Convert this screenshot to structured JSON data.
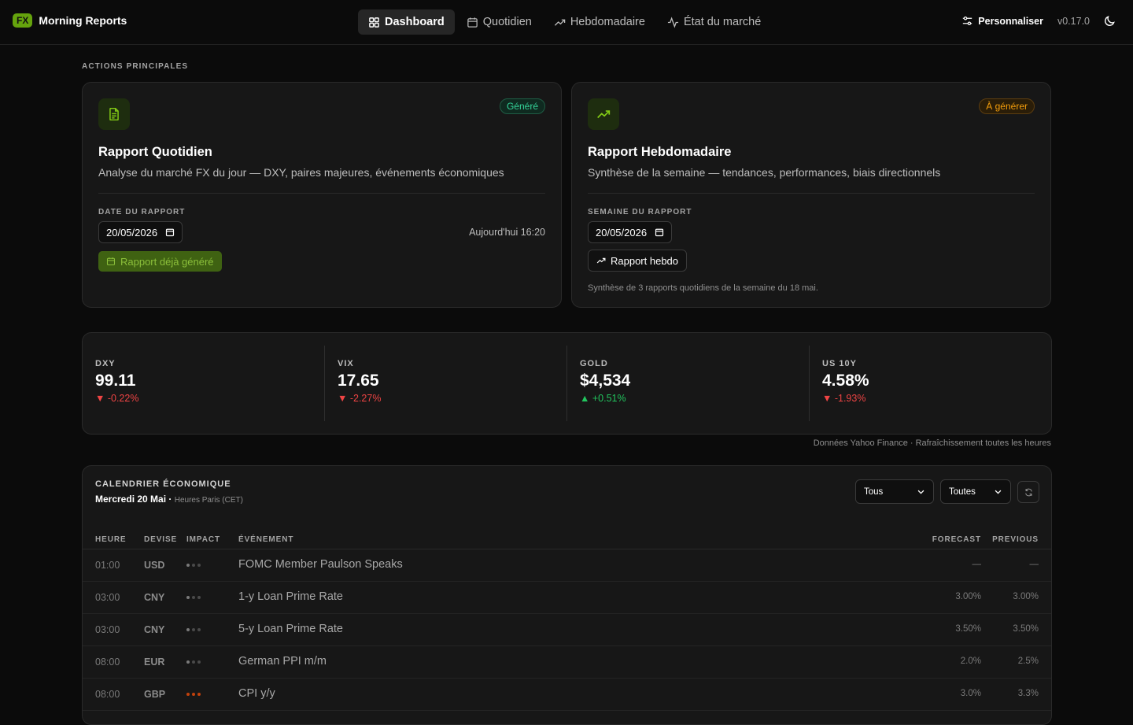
{
  "app": {
    "logo_badge": "FX",
    "name": "Morning Reports",
    "version": "v0.17.0"
  },
  "nav": {
    "items": [
      {
        "label": "Dashboard",
        "icon": "grid-icon"
      },
      {
        "label": "Quotidien",
        "icon": "calendar-icon"
      },
      {
        "label": "Hebdomadaire",
        "icon": "trending-up-icon"
      },
      {
        "label": "État du marché",
        "icon": "activity-icon"
      }
    ],
    "customize_label": "Personnaliser"
  },
  "main_actions_label": "ACTIONS PRINCIPALES",
  "daily": {
    "title": "Rapport Quotidien",
    "description": "Analyse du marché FX du jour — DXY, paires majeures, événements économiques",
    "status": "Généré",
    "date_label": "DATE DU RAPPORT",
    "date_value": "20/05/2026",
    "generated_at": "Aujourd'hui 16:20",
    "button_label": "Rapport déjà généré"
  },
  "weekly": {
    "title": "Rapport Hebdomadaire",
    "description": "Synthèse de la semaine — tendances, performances, biais directionnels",
    "status": "À générer",
    "week_label": "SEMAINE DU RAPPORT",
    "date_value": "20/05/2026",
    "button_label": "Rapport hebdo",
    "note": "Synthèse de 3 rapports quotidiens de la semaine du 18 mai."
  },
  "tickers": [
    {
      "name": "DXY",
      "value": "99.11",
      "change": "▼ -0.22%",
      "direction": "down"
    },
    {
      "name": "VIX",
      "value": "17.65",
      "change": "▼ -2.27%",
      "direction": "down"
    },
    {
      "name": "GOLD",
      "value": "$4,534",
      "change": "▲ +0.51%",
      "direction": "up"
    },
    {
      "name": "US 10Y",
      "value": "4.58%",
      "change": "▼ -1.93%",
      "direction": "down"
    }
  ],
  "source_note": "Données Yahoo Finance · Rafraîchissement toutes les heures",
  "calendar": {
    "title": "CALENDRIER ÉCONOMIQUE",
    "date": "Mercredi 20 Mai",
    "timezone": "Heures Paris (CET)",
    "filter_currency": "Tous",
    "filter_impact": "Toutes",
    "columns": {
      "time": "HEURE",
      "currency": "DEVISE",
      "impact": "IMPACT",
      "event": "ÉVÉNEMENT",
      "forecast": "FORECAST",
      "previous": "PREVIOUS"
    },
    "rows": [
      {
        "time": "01:00",
        "currency": "USD",
        "impact": "low",
        "event": "FOMC Member Paulson Speaks",
        "forecast": "—",
        "previous": "—"
      },
      {
        "time": "03:00",
        "currency": "CNY",
        "impact": "low",
        "event": "1-y Loan Prime Rate",
        "forecast": "3.00%",
        "previous": "3.00%"
      },
      {
        "time": "03:00",
        "currency": "CNY",
        "impact": "low",
        "event": "5-y Loan Prime Rate",
        "forecast": "3.50%",
        "previous": "3.50%"
      },
      {
        "time": "08:00",
        "currency": "EUR",
        "impact": "low",
        "event": "German PPI m/m",
        "forecast": "2.0%",
        "previous": "2.5%"
      },
      {
        "time": "08:00",
        "currency": "GBP",
        "impact": "high",
        "event": "CPI y/y",
        "forecast": "3.0%",
        "previous": "3.3%"
      }
    ]
  },
  "colors": {
    "accent": "#65a30d",
    "positive": "#22c55e",
    "negative": "#ef4444",
    "warning": "#f59e0b",
    "background": "#0b0b0b",
    "card": "#171717"
  }
}
